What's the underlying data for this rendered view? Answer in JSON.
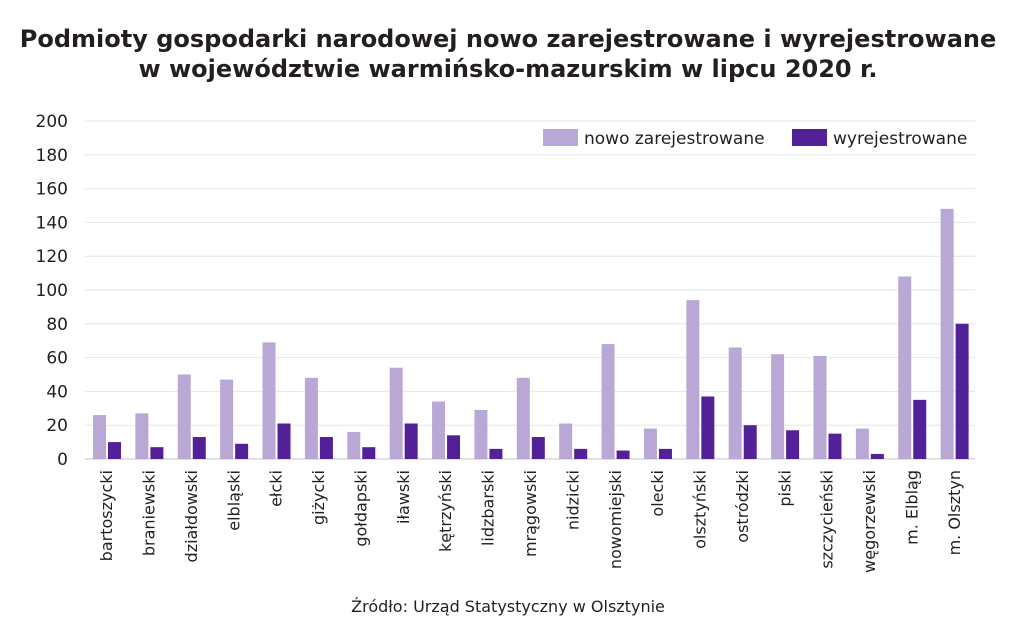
{
  "chart_data": {
    "type": "bar",
    "title": [
      "Podmioty gospodarki narodowej nowo zarejestrowane i wyrejestrowane",
      "w województwie warmińsko-mazurskim w lipcu 2020 r."
    ],
    "xlabel": "",
    "ylabel": "",
    "ylim": [
      0,
      200
    ],
    "yticks": [
      0,
      20,
      40,
      60,
      80,
      100,
      120,
      140,
      160,
      180,
      200
    ],
    "grid": true,
    "legend_position": "top-right",
    "categories": [
      "bartoszycki",
      "braniewski",
      "działdowski",
      "elbląski",
      "ełcki",
      "giżycki",
      "gołdapski",
      "iławski",
      "kętrzyński",
      "lidzbarski",
      "mrągowski",
      "nidzicki",
      "nowomiejski",
      "olecki",
      "olsztyński",
      "ostródzki",
      "piski",
      "szczycieński",
      "węgorzewski",
      "m. Elbląg",
      "m. Olsztyn"
    ],
    "series": [
      {
        "name": "nowo zarejestrowane",
        "color": "#b9a8d5",
        "values": [
          26,
          27,
          50,
          47,
          69,
          48,
          16,
          54,
          34,
          29,
          48,
          21,
          68,
          18,
          94,
          66,
          62,
          61,
          18,
          108,
          148
        ]
      },
      {
        "name": "wyrejestrowane",
        "color": "#522198",
        "values": [
          10,
          7,
          13,
          9,
          21,
          13,
          7,
          21,
          14,
          6,
          13,
          6,
          5,
          6,
          37,
          20,
          17,
          15,
          3,
          35,
          80
        ]
      }
    ],
    "source": "Źródło: Urząd Statystyczny w Olsztynie"
  }
}
